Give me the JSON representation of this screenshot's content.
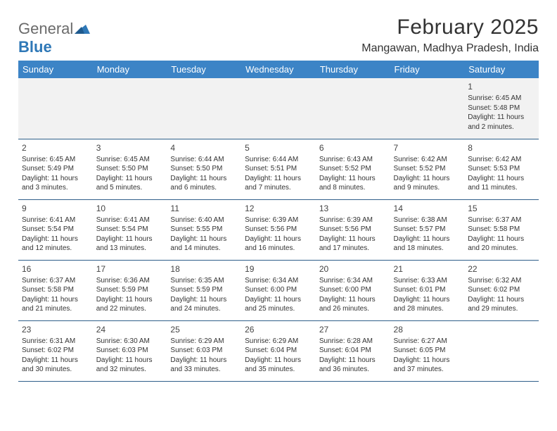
{
  "logo": {
    "word1": "General",
    "word2": "Blue",
    "text_color": "#6b6b6b",
    "accent_color": "#2f78b7"
  },
  "title": "February 2025",
  "location": "Mangawan, Madhya Pradesh, India",
  "colors": {
    "header_bg": "#3c84c6",
    "header_text": "#ffffff",
    "row_border": "#2f5f8a",
    "first_week_bg": "#f2f2f2",
    "body_text": "#333333",
    "background": "#ffffff"
  },
  "day_headers": [
    "Sunday",
    "Monday",
    "Tuesday",
    "Wednesday",
    "Thursday",
    "Friday",
    "Saturday"
  ],
  "weeks": [
    [
      null,
      null,
      null,
      null,
      null,
      null,
      {
        "n": "1",
        "sunrise": "6:45 AM",
        "sunset": "5:48 PM",
        "daylight": "11 hours and 2 minutes."
      }
    ],
    [
      {
        "n": "2",
        "sunrise": "6:45 AM",
        "sunset": "5:49 PM",
        "daylight": "11 hours and 3 minutes."
      },
      {
        "n": "3",
        "sunrise": "6:45 AM",
        "sunset": "5:50 PM",
        "daylight": "11 hours and 5 minutes."
      },
      {
        "n": "4",
        "sunrise": "6:44 AM",
        "sunset": "5:50 PM",
        "daylight": "11 hours and 6 minutes."
      },
      {
        "n": "5",
        "sunrise": "6:44 AM",
        "sunset": "5:51 PM",
        "daylight": "11 hours and 7 minutes."
      },
      {
        "n": "6",
        "sunrise": "6:43 AM",
        "sunset": "5:52 PM",
        "daylight": "11 hours and 8 minutes."
      },
      {
        "n": "7",
        "sunrise": "6:42 AM",
        "sunset": "5:52 PM",
        "daylight": "11 hours and 9 minutes."
      },
      {
        "n": "8",
        "sunrise": "6:42 AM",
        "sunset": "5:53 PM",
        "daylight": "11 hours and 11 minutes."
      }
    ],
    [
      {
        "n": "9",
        "sunrise": "6:41 AM",
        "sunset": "5:54 PM",
        "daylight": "11 hours and 12 minutes."
      },
      {
        "n": "10",
        "sunrise": "6:41 AM",
        "sunset": "5:54 PM",
        "daylight": "11 hours and 13 minutes."
      },
      {
        "n": "11",
        "sunrise": "6:40 AM",
        "sunset": "5:55 PM",
        "daylight": "11 hours and 14 minutes."
      },
      {
        "n": "12",
        "sunrise": "6:39 AM",
        "sunset": "5:56 PM",
        "daylight": "11 hours and 16 minutes."
      },
      {
        "n": "13",
        "sunrise": "6:39 AM",
        "sunset": "5:56 PM",
        "daylight": "11 hours and 17 minutes."
      },
      {
        "n": "14",
        "sunrise": "6:38 AM",
        "sunset": "5:57 PM",
        "daylight": "11 hours and 18 minutes."
      },
      {
        "n": "15",
        "sunrise": "6:37 AM",
        "sunset": "5:58 PM",
        "daylight": "11 hours and 20 minutes."
      }
    ],
    [
      {
        "n": "16",
        "sunrise": "6:37 AM",
        "sunset": "5:58 PM",
        "daylight": "11 hours and 21 minutes."
      },
      {
        "n": "17",
        "sunrise": "6:36 AM",
        "sunset": "5:59 PM",
        "daylight": "11 hours and 22 minutes."
      },
      {
        "n": "18",
        "sunrise": "6:35 AM",
        "sunset": "5:59 PM",
        "daylight": "11 hours and 24 minutes."
      },
      {
        "n": "19",
        "sunrise": "6:34 AM",
        "sunset": "6:00 PM",
        "daylight": "11 hours and 25 minutes."
      },
      {
        "n": "20",
        "sunrise": "6:34 AM",
        "sunset": "6:00 PM",
        "daylight": "11 hours and 26 minutes."
      },
      {
        "n": "21",
        "sunrise": "6:33 AM",
        "sunset": "6:01 PM",
        "daylight": "11 hours and 28 minutes."
      },
      {
        "n": "22",
        "sunrise": "6:32 AM",
        "sunset": "6:02 PM",
        "daylight": "11 hours and 29 minutes."
      }
    ],
    [
      {
        "n": "23",
        "sunrise": "6:31 AM",
        "sunset": "6:02 PM",
        "daylight": "11 hours and 30 minutes."
      },
      {
        "n": "24",
        "sunrise": "6:30 AM",
        "sunset": "6:03 PM",
        "daylight": "11 hours and 32 minutes."
      },
      {
        "n": "25",
        "sunrise": "6:29 AM",
        "sunset": "6:03 PM",
        "daylight": "11 hours and 33 minutes."
      },
      {
        "n": "26",
        "sunrise": "6:29 AM",
        "sunset": "6:04 PM",
        "daylight": "11 hours and 35 minutes."
      },
      {
        "n": "27",
        "sunrise": "6:28 AM",
        "sunset": "6:04 PM",
        "daylight": "11 hours and 36 minutes."
      },
      {
        "n": "28",
        "sunrise": "6:27 AM",
        "sunset": "6:05 PM",
        "daylight": "11 hours and 37 minutes."
      },
      null
    ]
  ],
  "labels": {
    "sunrise": "Sunrise:",
    "sunset": "Sunset:",
    "daylight": "Daylight:"
  }
}
